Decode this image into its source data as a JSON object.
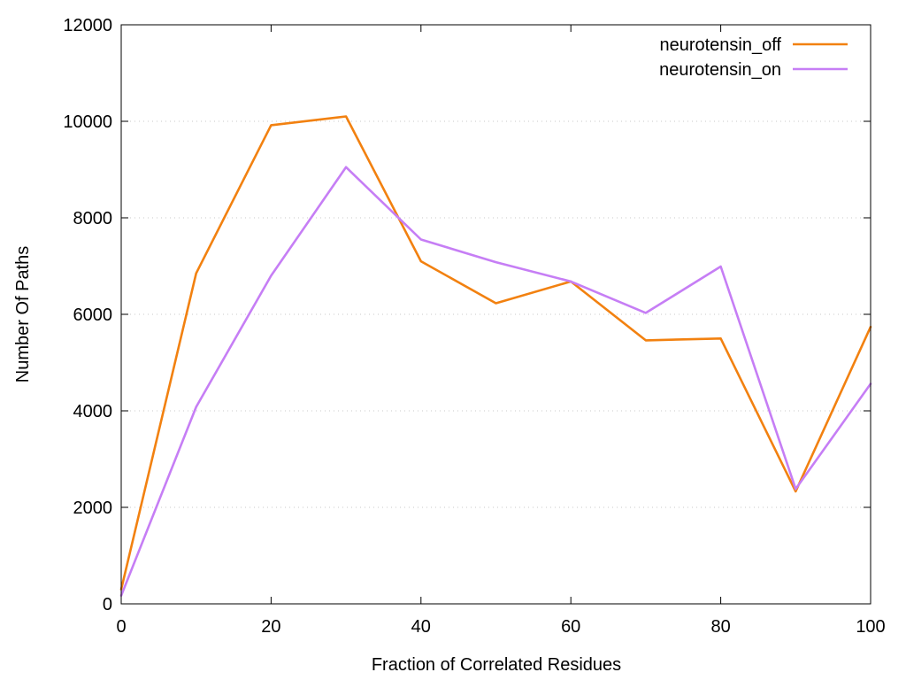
{
  "chart_data": {
    "type": "line",
    "title": "",
    "xlabel": "Fraction of Correlated Residues",
    "ylabel": "Number Of Paths",
    "xlim": [
      0,
      100
    ],
    "ylim": [
      0,
      12000
    ],
    "xticks": [
      0,
      20,
      40,
      60,
      80,
      100
    ],
    "yticks": [
      0,
      2000,
      4000,
      6000,
      8000,
      10000,
      12000
    ],
    "grid": "horizontal-dotted",
    "legend_position": "top-right",
    "x": [
      0,
      10,
      20,
      30,
      40,
      50,
      60,
      70,
      80,
      90,
      100
    ],
    "series": [
      {
        "name": "neurotensin_off",
        "color": "#f28110",
        "values": [
          300,
          6850,
          9920,
          10100,
          7100,
          6230,
          6680,
          5460,
          5500,
          2330,
          5740
        ]
      },
      {
        "name": "neurotensin_on",
        "color": "#c67ef5",
        "values": [
          170,
          4080,
          6800,
          9050,
          7550,
          7080,
          6680,
          6030,
          6990,
          2380,
          4560
        ]
      }
    ]
  }
}
